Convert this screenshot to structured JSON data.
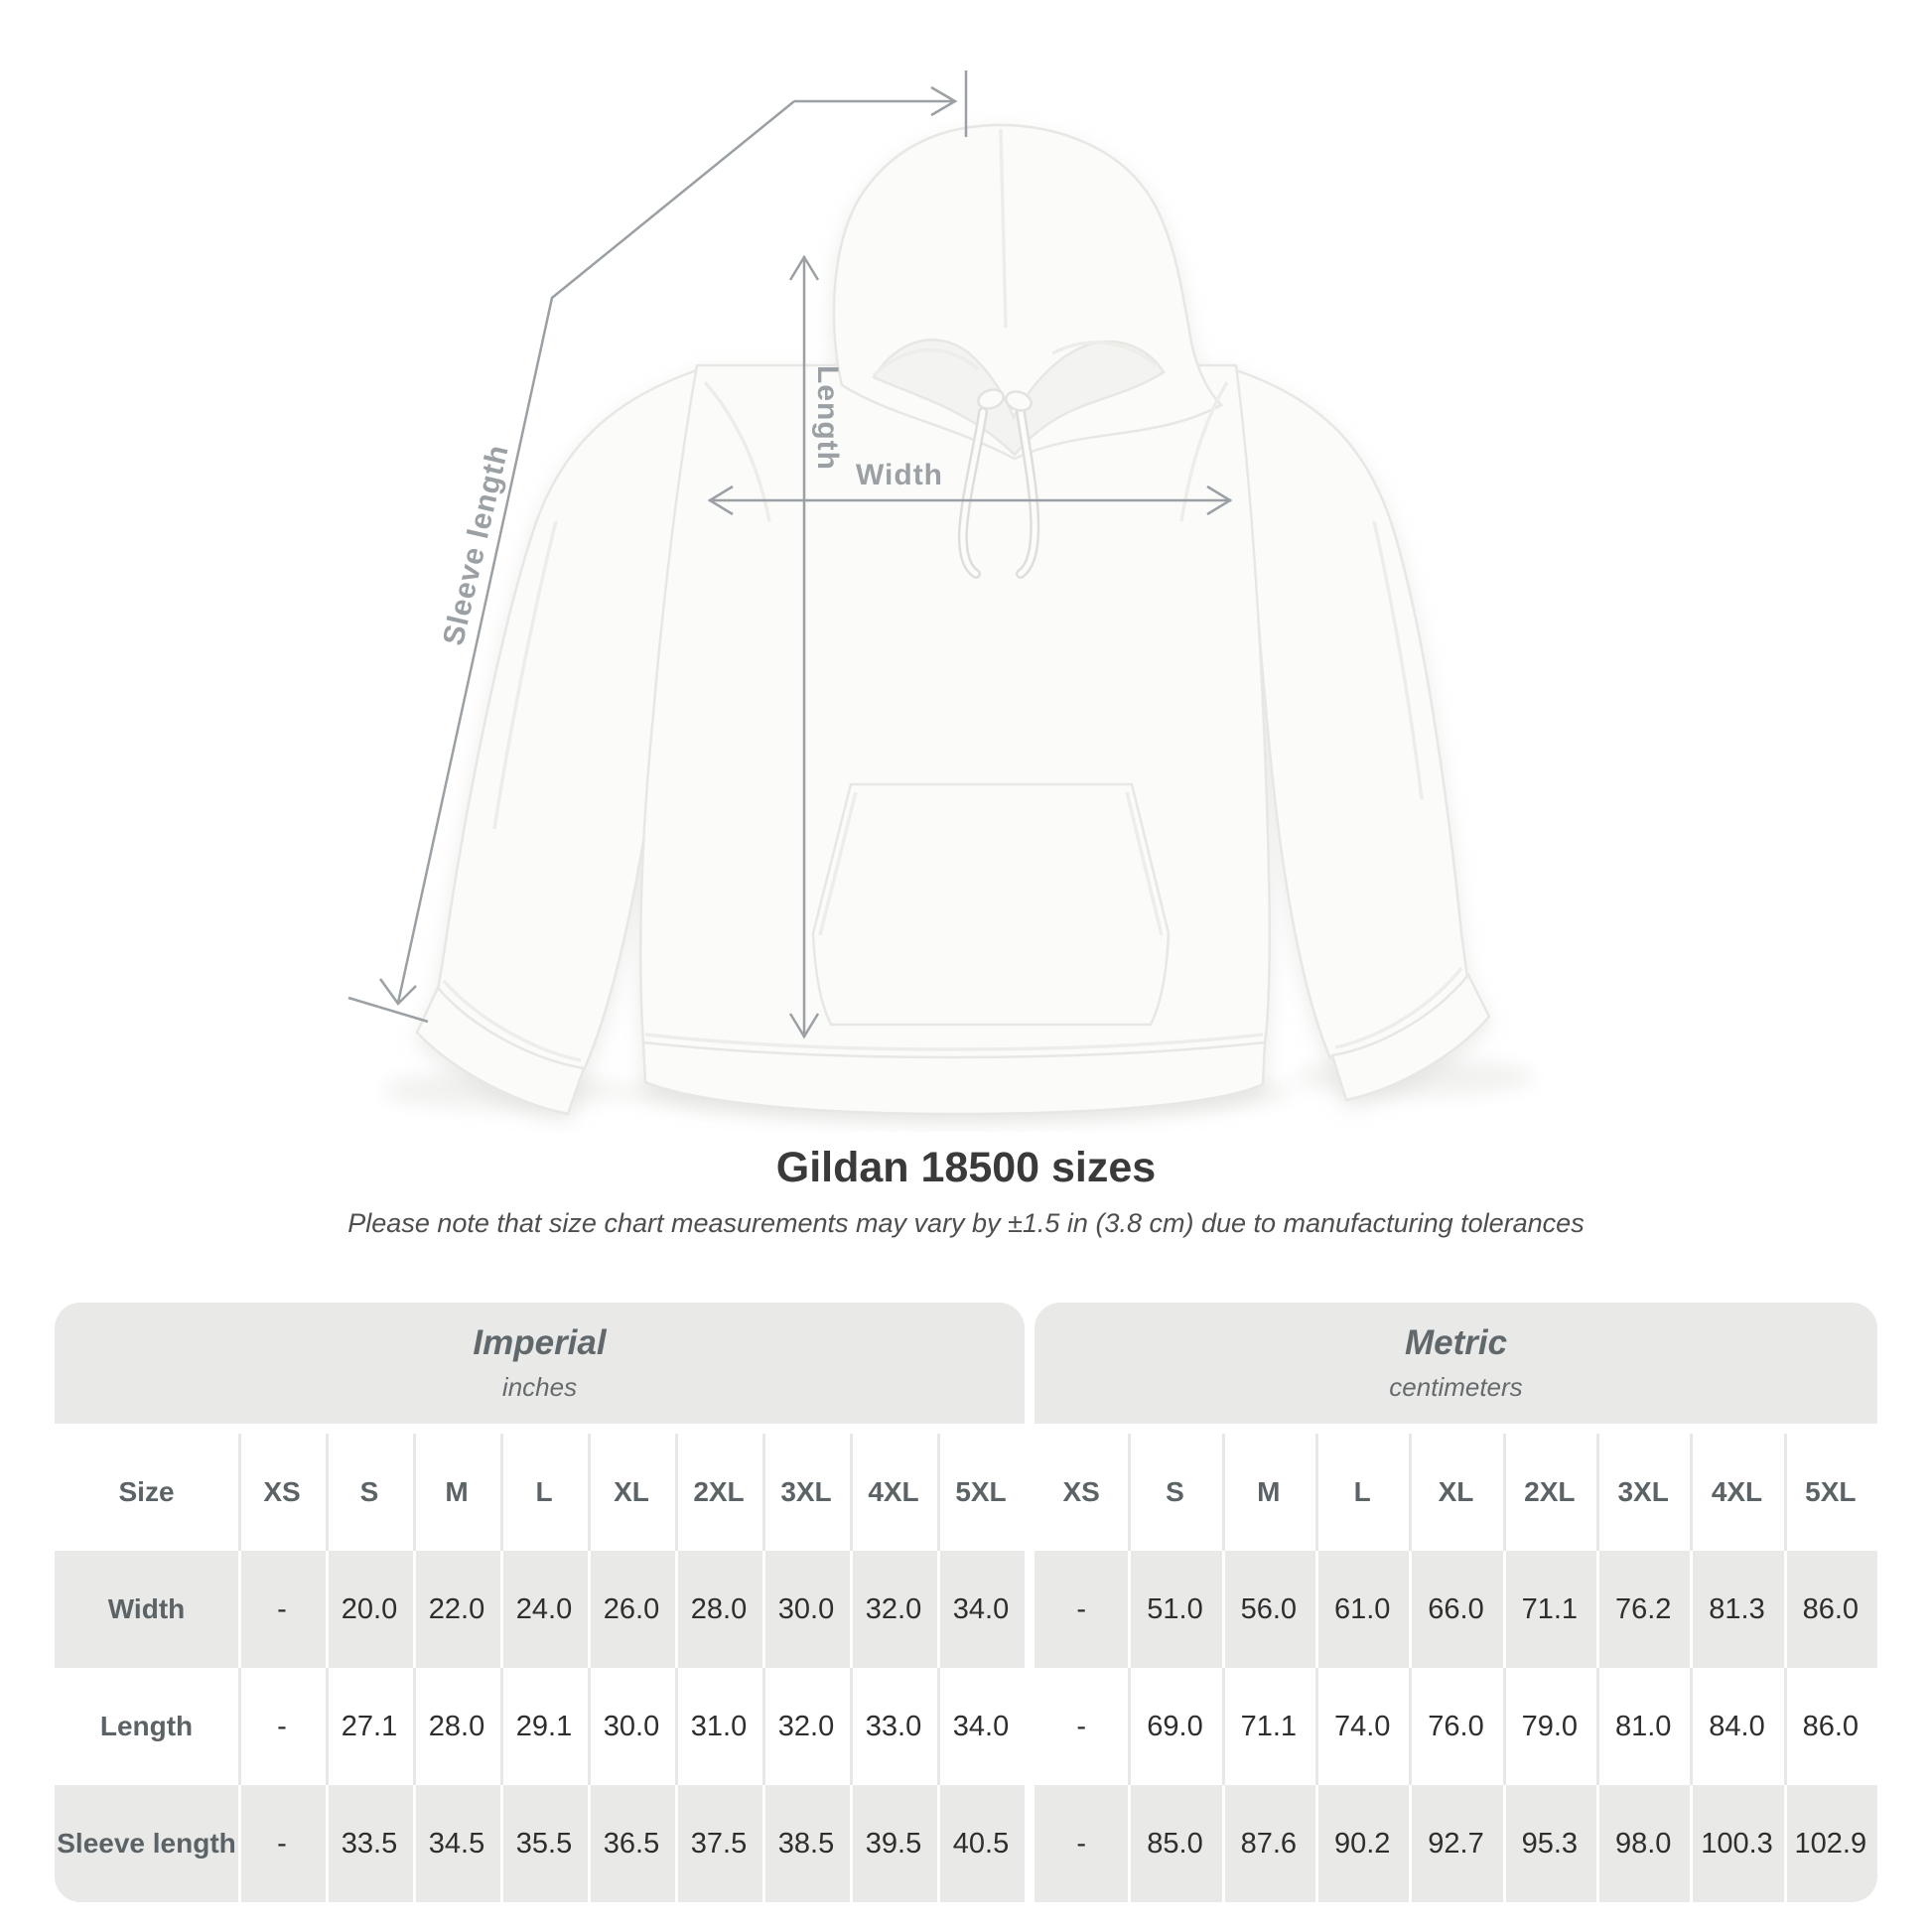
{
  "figure": {
    "labels": {
      "length": "Length",
      "width": "Width",
      "sleeve": "Sleeve length"
    },
    "line_color": "#9aa0a4",
    "garment": "white-hoodie-front-photo"
  },
  "title": "Gildan 18500 sizes",
  "subtitle": "Please note that size chart measurements may vary by ±1.5 in (3.8 cm) due to manufacturing tolerances",
  "table": {
    "size_header": "Size",
    "groups": [
      {
        "name": "Imperial",
        "unit": "inches"
      },
      {
        "name": "Metric",
        "unit": "centimeters"
      }
    ],
    "sizes": [
      "XS",
      "S",
      "M",
      "L",
      "XL",
      "2XL",
      "3XL",
      "4XL",
      "5XL"
    ],
    "rows": [
      {
        "label": "Width",
        "imperial": [
          "-",
          "20.0",
          "22.0",
          "24.0",
          "26.0",
          "28.0",
          "30.0",
          "32.0",
          "34.0"
        ],
        "metric": [
          "-",
          "51.0",
          "56.0",
          "61.0",
          "66.0",
          "71.1",
          "76.2",
          "81.3",
          "86.0"
        ]
      },
      {
        "label": "Length",
        "imperial": [
          "-",
          "27.1",
          "28.0",
          "29.1",
          "30.0",
          "31.0",
          "32.0",
          "33.0",
          "34.0"
        ],
        "metric": [
          "-",
          "69.0",
          "71.1",
          "74.0",
          "76.0",
          "79.0",
          "81.0",
          "84.0",
          "86.0"
        ]
      },
      {
        "label": "Sleeve length",
        "imperial": [
          "-",
          "33.5",
          "34.5",
          "35.5",
          "36.5",
          "37.5",
          "38.5",
          "39.5",
          "40.5"
        ],
        "metric": [
          "-",
          "85.0",
          "87.6",
          "90.2",
          "92.7",
          "95.3",
          "98.0",
          "100.3",
          "102.9"
        ]
      }
    ],
    "shade_color": "#e9e9e8"
  },
  "chart_data": {
    "type": "table",
    "title": "Gildan 18500 sizes",
    "note": "Please note that size chart measurements may vary by ±1.5 in (3.8 cm) due to manufacturing tolerances",
    "column_groups": [
      "Imperial (inches)",
      "Metric (centimeters)"
    ],
    "columns": [
      "Size",
      "XS",
      "S",
      "M",
      "L",
      "XL",
      "2XL",
      "3XL",
      "4XL",
      "5XL",
      "XS",
      "S",
      "M",
      "L",
      "XL",
      "2XL",
      "3XL",
      "4XL",
      "5XL"
    ],
    "rows": [
      [
        "Width",
        "-",
        20.0,
        22.0,
        24.0,
        26.0,
        28.0,
        30.0,
        32.0,
        34.0,
        "-",
        51.0,
        56.0,
        61.0,
        66.0,
        71.1,
        76.2,
        81.3,
        86.0
      ],
      [
        "Length",
        "-",
        27.1,
        28.0,
        29.1,
        30.0,
        31.0,
        32.0,
        33.0,
        34.0,
        "-",
        69.0,
        71.1,
        74.0,
        76.0,
        79.0,
        81.0,
        84.0,
        86.0
      ],
      [
        "Sleeve length",
        "-",
        33.5,
        34.5,
        35.5,
        36.5,
        37.5,
        38.5,
        39.5,
        40.5,
        "-",
        85.0,
        87.6,
        90.2,
        92.7,
        95.3,
        98.0,
        100.3,
        102.9
      ]
    ]
  }
}
